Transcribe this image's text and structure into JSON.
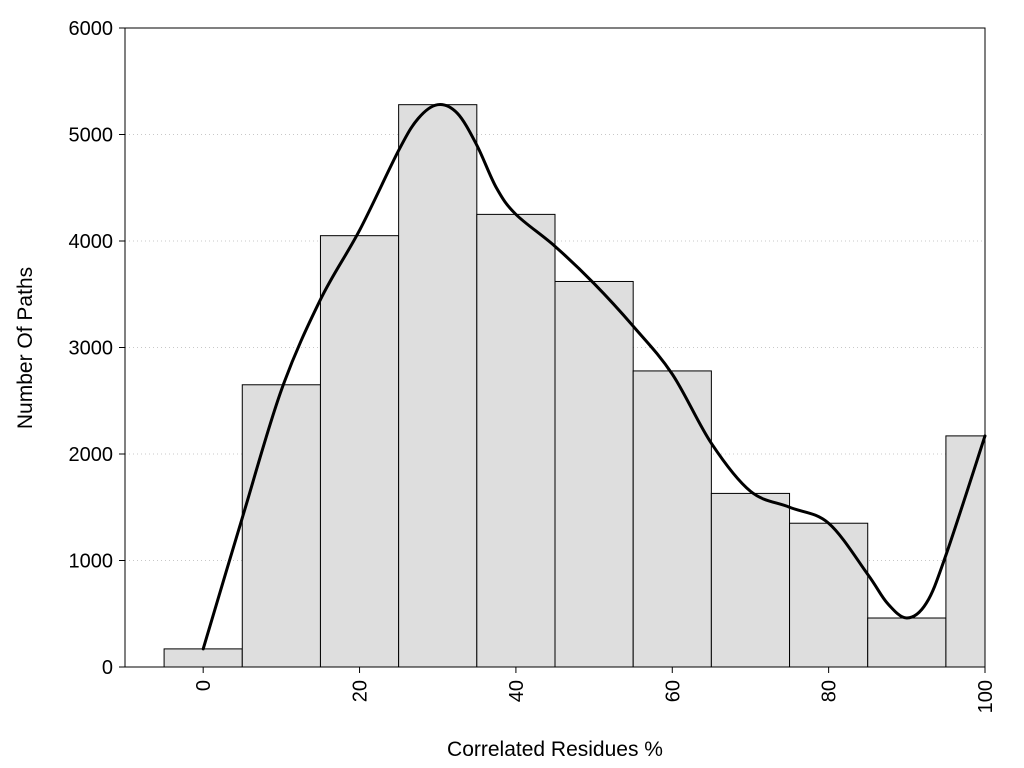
{
  "chart_data": {
    "type": "bar",
    "title": "",
    "xlabel": "Correlated Residues %",
    "ylabel": "Number Of Paths",
    "xlim": [
      -10,
      100
    ],
    "ylim": [
      0,
      6000
    ],
    "x_ticks": [
      0,
      20,
      40,
      60,
      80,
      100
    ],
    "y_ticks": [
      0,
      1000,
      2000,
      3000,
      4000,
      5000,
      6000
    ],
    "grid": "horizontal dotted",
    "legend": "none",
    "bar_width": 10,
    "bars": [
      {
        "x": 0,
        "value": 170
      },
      {
        "x": 10,
        "value": 2650
      },
      {
        "x": 20,
        "value": 4050
      },
      {
        "x": 30,
        "value": 5280
      },
      {
        "x": 40,
        "value": 4250
      },
      {
        "x": 50,
        "value": 3620
      },
      {
        "x": 60,
        "value": 2780
      },
      {
        "x": 70,
        "value": 1630
      },
      {
        "x": 80,
        "value": 1350
      },
      {
        "x": 90,
        "value": 460
      },
      {
        "x": 100,
        "value": 2170
      }
    ],
    "curve": {
      "x": [
        0,
        5,
        10,
        15,
        20,
        25,
        27.5,
        30,
        32.5,
        35,
        37.5,
        40,
        45,
        50,
        55,
        60,
        65,
        70,
        75,
        80,
        85,
        87.5,
        90,
        92.5,
        95,
        100
      ],
      "y": [
        170,
        1400,
        2600,
        3450,
        4100,
        4850,
        5150,
        5280,
        5200,
        4900,
        4500,
        4250,
        3950,
        3600,
        3200,
        2750,
        2100,
        1650,
        1500,
        1350,
        870,
        600,
        460,
        600,
        1050,
        2170
      ]
    },
    "colors": {
      "bar_fill": "#dedede",
      "bar_stroke": "#000000",
      "curve": "#000000",
      "grid": "#c8c8c8"
    }
  }
}
